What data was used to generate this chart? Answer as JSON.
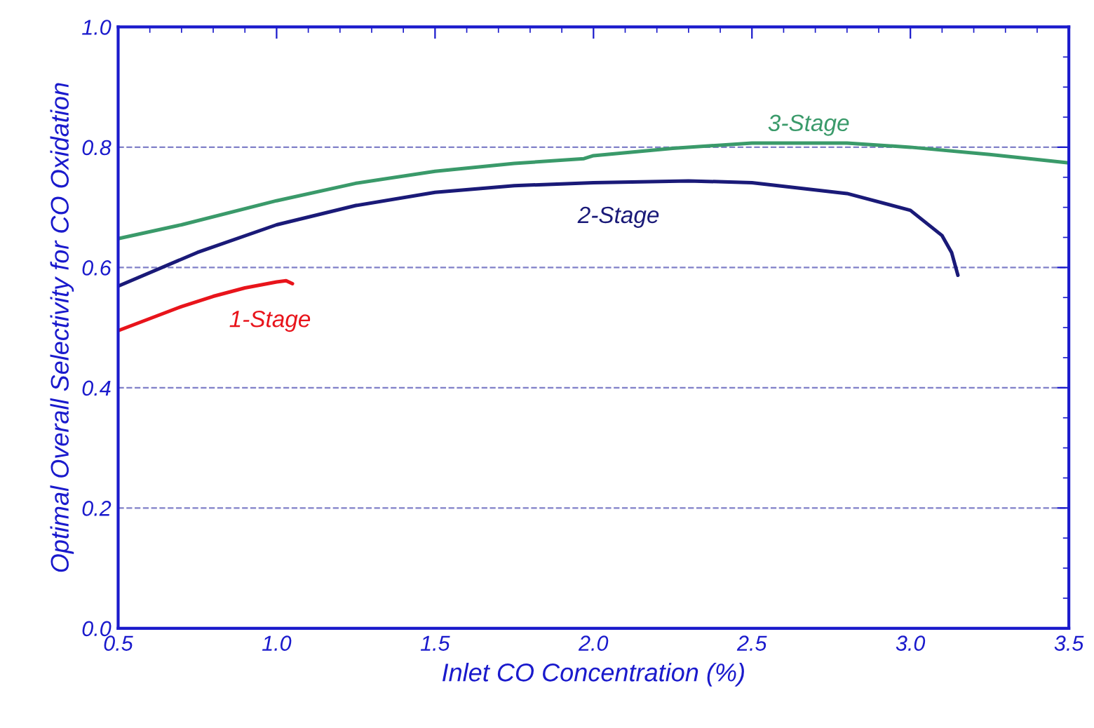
{
  "chart_data": {
    "type": "line",
    "xlabel": "Inlet CO Concentration (%)",
    "ylabel": "Optimal Overall Selectivity for CO Oxidation",
    "xlim": [
      0.5,
      3.5
    ],
    "xticks": [
      {
        "value": 0.5,
        "label": "0.5"
      },
      {
        "value": 1.0,
        "label": "1.0"
      },
      {
        "value": 1.5,
        "label": "1.5"
      },
      {
        "value": 2.0,
        "label": "2.0"
      },
      {
        "value": 2.5,
        "label": "2.5"
      },
      {
        "value": 3.0,
        "label": "3.0"
      },
      {
        "value": 3.5,
        "label": "3.5"
      }
    ],
    "ylim": [
      0,
      1
    ],
    "yticks": [
      {
        "value": 0,
        "label": "0.0"
      },
      {
        "value": 0.2,
        "label": "0.2"
      },
      {
        "value": 0.4,
        "label": "0.4"
      },
      {
        "value": 0.6,
        "label": "0.6"
      },
      {
        "value": 0.8,
        "label": "0.8"
      },
      {
        "value": 1.0,
        "label": "1.0"
      }
    ],
    "grid": "y",
    "legend": false,
    "marker": "none",
    "line_style": "solid",
    "series": [
      {
        "name": "1-Stage",
        "color": "#e8141b",
        "x": [
          0.5,
          0.6,
          0.7,
          0.8,
          0.9,
          1.0,
          1.03,
          1.05
        ],
        "values": [
          0.495,
          0.515,
          0.535,
          0.552,
          0.566,
          0.576,
          0.578,
          0.573
        ]
      },
      {
        "name": "2-Stage",
        "color": "#1a1a78",
        "x": [
          0.5,
          0.75,
          1.0,
          1.25,
          1.5,
          1.75,
          2.0,
          2.3,
          2.5,
          2.8,
          3.0,
          3.1,
          3.13,
          3.15
        ],
        "values": [
          0.569,
          0.625,
          0.671,
          0.703,
          0.725,
          0.736,
          0.741,
          0.744,
          0.741,
          0.723,
          0.695,
          0.653,
          0.625,
          0.587
        ]
      },
      {
        "name": "3-Stage",
        "color": "#3a9a6a",
        "x": [
          0.5,
          0.7,
          1.0,
          1.25,
          1.5,
          1.75,
          1.97,
          2.0,
          2.25,
          2.5,
          2.8,
          3.0,
          3.25,
          3.5
        ],
        "values": [
          0.648,
          0.671,
          0.711,
          0.74,
          0.76,
          0.773,
          0.781,
          0.786,
          0.798,
          0.807,
          0.807,
          0.8,
          0.788,
          0.774
        ]
      }
    ]
  }
}
